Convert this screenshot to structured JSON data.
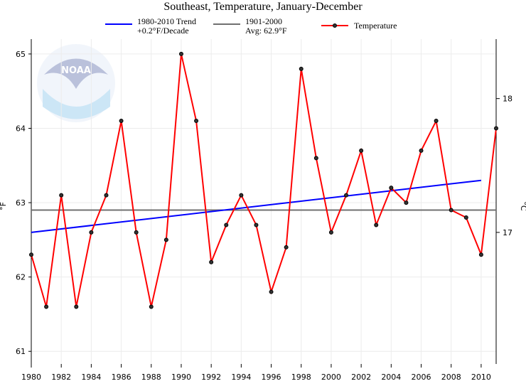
{
  "chart_data": {
    "type": "line",
    "title": "Southeast, Temperature, January-December",
    "ylabel": "°F",
    "y2label": "°C",
    "xlim": [
      1980,
      2011
    ],
    "ylim": [
      60.83,
      65.2
    ],
    "grid": true,
    "legend_placement": "top",
    "x_ticks": [
      1980,
      1982,
      1984,
      1986,
      1988,
      1990,
      1992,
      1994,
      1996,
      1998,
      2000,
      2002,
      2004,
      2006,
      2008,
      2010
    ],
    "y_ticks": [
      61,
      62,
      63,
      64,
      65
    ],
    "y2_ticks": [
      17,
      18
    ],
    "series": [
      {
        "name": "Temperature",
        "color": "#ff0000",
        "x": [
          1980,
          1981,
          1982,
          1983,
          1984,
          1985,
          1986,
          1987,
          1988,
          1989,
          1990,
          1991,
          1992,
          1993,
          1994,
          1995,
          1996,
          1997,
          1998,
          1999,
          2000,
          2001,
          2002,
          2003,
          2004,
          2005,
          2006,
          2007,
          2008,
          2009,
          2010,
          2011
        ],
        "values": [
          62.3,
          61.6,
          63.1,
          61.6,
          62.6,
          63.1,
          64.1,
          62.6,
          61.6,
          62.5,
          65.0,
          64.1,
          62.2,
          62.7,
          63.1,
          62.7,
          61.8,
          62.4,
          64.8,
          63.6,
          62.6,
          63.1,
          63.7,
          62.7,
          63.2,
          63.0,
          63.7,
          64.1,
          62.9,
          62.8,
          62.3,
          64.0
        ]
      },
      {
        "name": "1980-2010 Trend",
        "subtitle": "+0.2°F/Decade",
        "color": "#0000ff",
        "x": [
          1980,
          2010
        ],
        "values": [
          62.6,
          63.3
        ]
      },
      {
        "name": "1901-2000",
        "subtitle": "Avg: 62.9°F",
        "color": "#707070",
        "x": [
          1980,
          2011
        ],
        "values": [
          62.9,
          62.9
        ]
      }
    ]
  }
}
